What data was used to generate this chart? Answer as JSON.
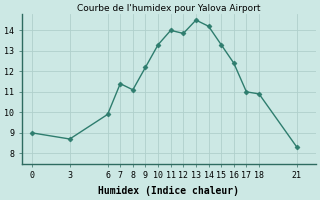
{
  "x": [
    0,
    3,
    6,
    7,
    8,
    9,
    10,
    11,
    12,
    13,
    14,
    15,
    16,
    17,
    18,
    21
  ],
  "y": [
    9.0,
    8.7,
    9.9,
    11.4,
    11.1,
    12.2,
    13.3,
    14.0,
    13.85,
    14.5,
    14.2,
    13.3,
    12.4,
    11.0,
    10.9,
    8.3
  ],
  "line_color": "#2e7d6e",
  "marker_color": "#2e7d6e",
  "bg_color": "#cce8e4",
  "grid_color": "#b0d0cc",
  "xlabel": "Humidex (Indice chaleur)",
  "title": "Courbe de l'humidex pour Yalova Airport",
  "xticks": [
    0,
    3,
    6,
    7,
    8,
    9,
    10,
    11,
    12,
    13,
    14,
    15,
    16,
    17,
    18,
    21
  ],
  "yticks": [
    8,
    9,
    10,
    11,
    12,
    13,
    14
  ],
  "ylim": [
    7.5,
    14.8
  ],
  "xlim": [
    -0.8,
    22.5
  ],
  "xlabel_fontsize": 7,
  "tick_fontsize": 6,
  "title_fontsize": 6.5
}
